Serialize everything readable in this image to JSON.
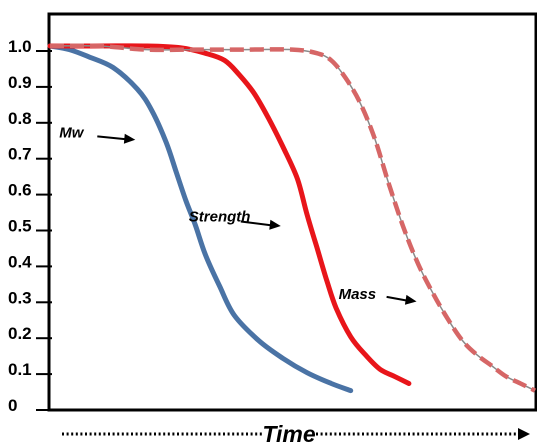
{
  "chart_data": {
    "type": "line",
    "title": "",
    "xlabel": "Time",
    "ylabel": "",
    "ylim": [
      0,
      1.0
    ],
    "xlim": [
      0,
      100
    ],
    "y_ticks": [
      {
        "value": 0,
        "label": "0"
      },
      {
        "value": 0.1,
        "label": "0.1"
      },
      {
        "value": 0.2,
        "label": "0.2"
      },
      {
        "value": 0.3,
        "label": "0.3"
      },
      {
        "value": 0.4,
        "label": "0.4"
      },
      {
        "value": 0.5,
        "label": "0.5"
      },
      {
        "value": 0.6,
        "label": "0.6"
      },
      {
        "value": 0.7,
        "label": "0.7"
      },
      {
        "value": 0.8,
        "label": "0.8"
      },
      {
        "value": 0.9,
        "label": "0.9"
      },
      {
        "value": 1.0,
        "label": "1.0"
      }
    ],
    "grid": false,
    "series": [
      {
        "name": "Mw",
        "color": "#4a73a5",
        "dashed": false,
        "x": [
          0,
          4,
          8,
          13,
          18,
          21,
          24,
          26,
          28,
          30,
          32,
          35,
          38,
          43,
          48,
          53,
          58,
          62
        ],
        "y": [
          1.0,
          0.99,
          0.97,
          0.94,
          0.88,
          0.82,
          0.73,
          0.65,
          0.57,
          0.5,
          0.42,
          0.33,
          0.25,
          0.18,
          0.13,
          0.09,
          0.06,
          0.04
        ]
      },
      {
        "name": "Strength",
        "color": "#e8151a",
        "dashed": false,
        "x": [
          0,
          10,
          20,
          27,
          32,
          36,
          39,
          42,
          45,
          48,
          51,
          53,
          55,
          57,
          59,
          62,
          65,
          68,
          71,
          74
        ],
        "y": [
          1.0,
          1.0,
          1.0,
          0.995,
          0.98,
          0.96,
          0.92,
          0.87,
          0.8,
          0.72,
          0.63,
          0.53,
          0.44,
          0.35,
          0.27,
          0.19,
          0.14,
          0.1,
          0.08,
          0.06
        ]
      },
      {
        "name": "Mass",
        "color": "#d66666",
        "dashed": true,
        "x": [
          0,
          10,
          20,
          30,
          40,
          50,
          55,
          58,
          61,
          64,
          67,
          70,
          73,
          76,
          79,
          82,
          85,
          88,
          91,
          94,
          97,
          100
        ],
        "y": [
          1.0,
          1.0,
          0.99,
          0.99,
          0.99,
          0.99,
          0.98,
          0.96,
          0.91,
          0.84,
          0.74,
          0.61,
          0.49,
          0.39,
          0.31,
          0.24,
          0.18,
          0.14,
          0.11,
          0.08,
          0.06,
          0.04
        ]
      }
    ],
    "annotations": [
      {
        "text": "Mw",
        "target_series": "Mw",
        "arrow_to": {
          "x": 18,
          "y": 0.74
        }
      },
      {
        "text": "Strength",
        "target_series": "Strength",
        "arrow_to": {
          "x": 48,
          "y": 0.5
        }
      },
      {
        "text": "Mass",
        "target_series": "Mass",
        "arrow_to": {
          "x": 76,
          "y": 0.29
        }
      }
    ]
  }
}
